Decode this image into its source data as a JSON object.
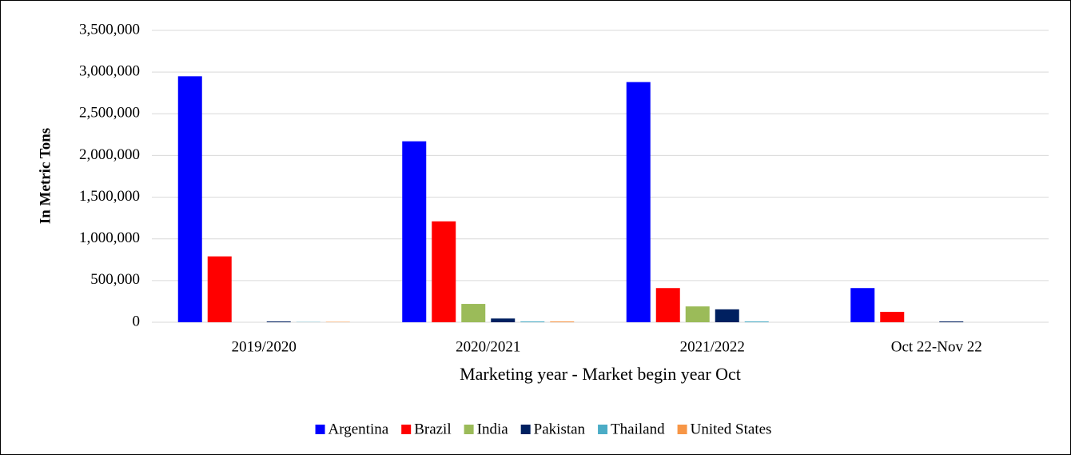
{
  "chart_data": {
    "type": "bar",
    "y_label": "In Metric Tons",
    "x_label": "Marketing year - Market begin year Oct",
    "categories": [
      "2019/2020",
      "2020/2021",
      "2021/2022",
      "Oct 22-Nov 22"
    ],
    "series": [
      {
        "name": "Argentina",
        "color": "#0000ff",
        "values": [
          2950000,
          2170000,
          2880000,
          410000
        ]
      },
      {
        "name": "Brazil",
        "color": "#ff0000",
        "values": [
          790000,
          1210000,
          410000,
          125000
        ]
      },
      {
        "name": "India",
        "color": "#9bbb59",
        "values": [
          0,
          220000,
          190000,
          0
        ]
      },
      {
        "name": "Pakistan",
        "color": "#002060",
        "values": [
          10000,
          45000,
          155000,
          10000
        ]
      },
      {
        "name": "Thailand",
        "color": "#4bacc6",
        "values": [
          3000,
          10000,
          10000,
          0
        ]
      },
      {
        "name": "United States",
        "color": "#f79646",
        "values": [
          5000,
          10000,
          0,
          0
        ]
      }
    ],
    "ylim": [
      0,
      3500000
    ],
    "yticks": [
      {
        "value": 0,
        "label": "0"
      },
      {
        "value": 500000,
        "label": "500,000"
      },
      {
        "value": 1000000,
        "label": "1,000,000"
      },
      {
        "value": 1500000,
        "label": "1,500,000"
      },
      {
        "value": 2000000,
        "label": "2,000,000"
      },
      {
        "value": 2500000,
        "label": "2,500,000"
      },
      {
        "value": 3000000,
        "label": "3,000,000"
      },
      {
        "value": 3500000,
        "label": "3,500,000"
      }
    ],
    "grid": true,
    "legend": "bottom"
  }
}
